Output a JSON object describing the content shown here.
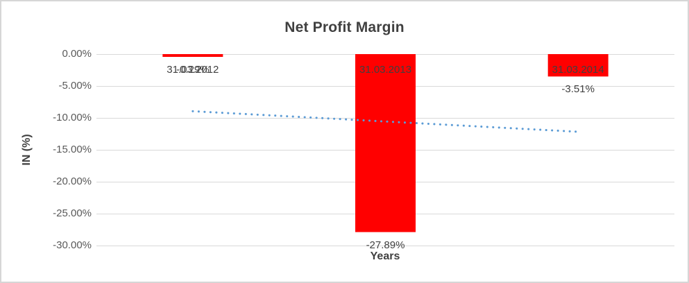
{
  "chart": {
    "title": "Net Profit Margin",
    "y_ticks": [
      "0.00%",
      "-5.00%",
      "-10.00%",
      "-15.00%",
      "-20.00%",
      "-25.00%",
      "-30.00%"
    ]
  },
  "chart_data": {
    "type": "bar",
    "title": "Net Profit Margin",
    "xlabel": "Years",
    "ylabel": "IN (%)",
    "categories": [
      "31.03.2012",
      "31.03.2013",
      "31.03.2014"
    ],
    "values": [
      -0.29,
      -27.89,
      -3.51
    ],
    "data_labels": [
      "-0.29%",
      "-27.89%",
      "-3.51%"
    ],
    "ylim": [
      -30,
      0
    ],
    "y_tick_step": 5,
    "grid": true,
    "legend": false,
    "bar_color": "#FF0000",
    "gridline_color": "#D9D9D9",
    "label_color": "#404040",
    "tick_color": "#595959",
    "trendline": {
      "type": "linear",
      "style": "dotted",
      "color": "#5B9BD5",
      "start_value": -8.95,
      "end_value": -12.17
    }
  }
}
